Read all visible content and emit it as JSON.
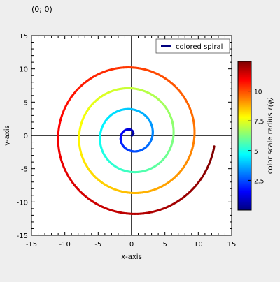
{
  "window": {
    "coordinate_readout": "(0; 0)",
    "background_color": "#eeeeee"
  },
  "chart_data": {
    "type": "line",
    "title": "",
    "xlabel": "x-axis",
    "ylabel": "y-axis",
    "xlim": [
      -15,
      15
    ],
    "ylim": [
      -15,
      15
    ],
    "x_ticks": [
      -15,
      -10,
      -5,
      0,
      5,
      10,
      15
    ],
    "y_ticks": [
      -15,
      -10,
      -5,
      0,
      5,
      10,
      15
    ],
    "x_tick_labels": [
      "-15",
      "-10",
      "-5",
      "0",
      "5",
      "10",
      "15"
    ],
    "y_tick_labels": [
      "-15",
      "-10",
      "-5",
      "0",
      "5",
      "10",
      "15"
    ],
    "grid": false,
    "zero_lines": true,
    "legend": {
      "position": "top-right",
      "entries": [
        "colored spiral"
      ]
    },
    "series": [
      {
        "name": "colored spiral",
        "curve": "archimedean-spiral",
        "r_per_radian": 0.5,
        "theta_max_radians": 25,
        "color_by": "radius",
        "legend_color": "#00007f"
      }
    ],
    "colorbar": {
      "label": "color scale radius",
      "label_math": "r(φ)",
      "range": [
        0,
        12.5
      ],
      "ticks": [
        2.5,
        5,
        7.5,
        10
      ],
      "tick_labels": [
        "2.5",
        "5",
        "7.5",
        "10"
      ],
      "colormap": "jet",
      "colormap_stops": [
        "#00007f",
        "#0000ff",
        "#00ffff",
        "#ffff00",
        "#ff0000",
        "#7f0000"
      ]
    }
  }
}
